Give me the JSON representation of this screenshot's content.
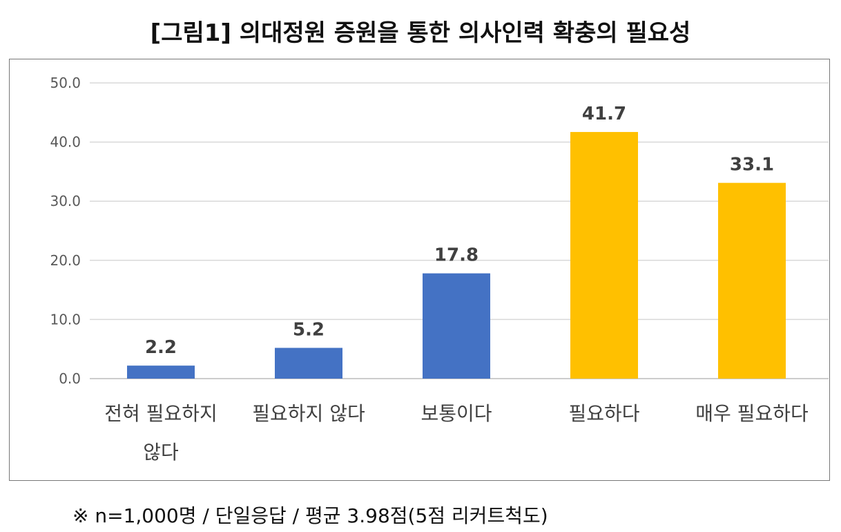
{
  "chart_data": {
    "type": "bar",
    "title": "[그림1] 의대정원 증원을 통한 의사인력 확충의 필요성",
    "categories": [
      [
        "전혀 필요하지",
        "않다"
      ],
      [
        "필요하지 않다"
      ],
      [
        "보통이다"
      ],
      [
        "필요하다"
      ],
      [
        "매우 필요하다"
      ]
    ],
    "values": [
      2.2,
      5.2,
      17.8,
      41.7,
      33.1
    ],
    "data_labels": [
      "2.2",
      "5.2",
      "17.8",
      "41.7",
      "33.1"
    ],
    "colors": [
      "#4472C4",
      "#4472C4",
      "#4472C4",
      "#FFC000",
      "#FFC000"
    ],
    "ylim": [
      0,
      50
    ],
    "yticks": [
      "0.0",
      "10.0",
      "20.0",
      "30.0",
      "40.0",
      "50.0"
    ],
    "grid": true,
    "xlabel": "",
    "ylabel": ""
  },
  "footnote": "※ n=1,000명 / 단일응답 / 평균 3.98점(5점 리커트척도)"
}
